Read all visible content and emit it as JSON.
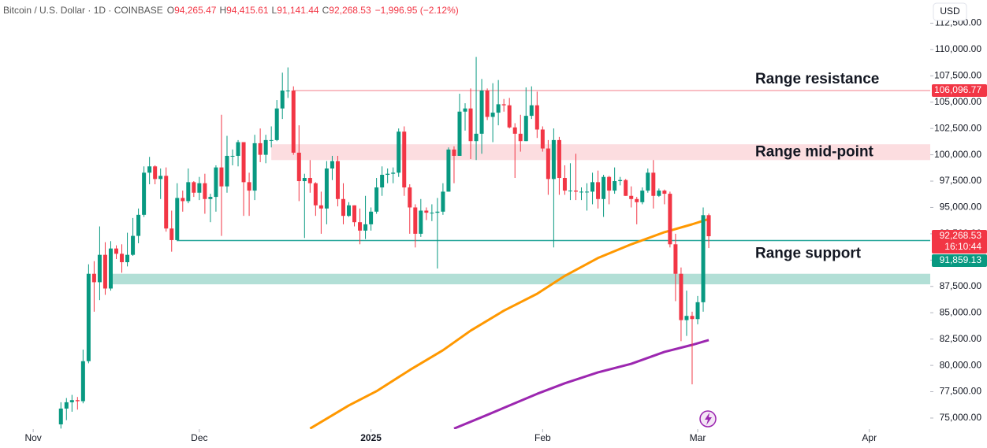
{
  "header": {
    "symbol": "Bitcoin / U.S. Dollar · 1D · COINBASE",
    "ohlc": [
      {
        "key": "O",
        "text": "94,265.47"
      },
      {
        "key": "H",
        "text": "94,415.61"
      },
      {
        "key": "L",
        "text": "91,141.44"
      },
      {
        "key": "C",
        "text": "92,268.53"
      }
    ],
    "change": "−1,996.95 (−2.12%)",
    "currency": "USD"
  },
  "chart_data": {
    "type": "candlestick",
    "up_color": "#089981",
    "down_color": "#f23645",
    "x": [
      5,
      6,
      7,
      8,
      9,
      10,
      11,
      12,
      13,
      14,
      15,
      16,
      17,
      18,
      19,
      20,
      21,
      22,
      23,
      24,
      25,
      26,
      27,
      28,
      29,
      30,
      31,
      32,
      33,
      34,
      35,
      36,
      37,
      38,
      39,
      40,
      41,
      42,
      43,
      44,
      45,
      46,
      47,
      48,
      49,
      50,
      51,
      52,
      53,
      54,
      55,
      56,
      57,
      58,
      59,
      60,
      61,
      62,
      63,
      64,
      65,
      66,
      67,
      68,
      69,
      70,
      71,
      72,
      73,
      74,
      75,
      76,
      77,
      78,
      79,
      80,
      81,
      82,
      83,
      84,
      85,
      86,
      87,
      88,
      89,
      90,
      91,
      92,
      93,
      94,
      95,
      96,
      97,
      98,
      99,
      100,
      101,
      102,
      103,
      104,
      105,
      106,
      107,
      108,
      109,
      110,
      111,
      112,
      113,
      114,
      115,
      116,
      117,
      118,
      119,
      120,
      121,
      122
    ],
    "open": [
      74400,
      75900,
      76500,
      76700,
      76600,
      80400,
      88700,
      87900,
      90500,
      87300,
      91100,
      90600,
      89800,
      90500,
      92300,
      94300,
      98300,
      98900,
      97700,
      98000,
      93000,
      91900,
      95900,
      95600,
      97400,
      96400,
      97300,
      95800,
      96000,
      98800,
      97000,
      99900,
      99900,
      101200,
      97400,
      96600,
      101100,
      100000,
      101400,
      101400,
      104400,
      106100,
      106100,
      100200,
      97500,
      97800,
      97300,
      95200,
      94900,
      98700,
      99400,
      95800,
      94200,
      95200,
      93600,
      92800,
      93400,
      94600,
      96900,
      98100,
      98200,
      98300,
      102200,
      96900,
      95000,
      92500,
      94700,
      94500,
      94500,
      94600,
      96500,
      100500,
      99900,
      104100,
      104400,
      101300,
      102000,
      106100,
      103600,
      104000,
      104800,
      104700,
      102600,
      102000,
      101300,
      103700,
      104700,
      102400,
      100600,
      97700,
      101400,
      97800,
      96600,
      96600,
      96500,
      96500,
      96500,
      97400,
      95800,
      97900,
      96600,
      97500,
      97600,
      96100,
      95800,
      95500,
      96600,
      98300,
      96100,
      96600,
      96300,
      91500,
      88700,
      84300,
      84700,
      84400,
      86000,
      94265.47
    ],
    "high": [
      76500,
      76900,
      77200,
      77000,
      81500,
      89600,
      89900,
      93200,
      91700,
      91800,
      91400,
      91500,
      92600,
      94000,
      94900,
      98900,
      99800,
      99000,
      98700,
      98800,
      94700,
      97300,
      96600,
      98700,
      97500,
      97900,
      98200,
      96300,
      99000,
      103800,
      101800,
      100500,
      101400,
      101200,
      98300,
      101900,
      102500,
      101900,
      102700,
      105200,
      107800,
      108300,
      106500,
      102800,
      98200,
      99500,
      97400,
      96500,
      99400,
      99900,
      99900,
      97300,
      95500,
      95200,
      94900,
      96100,
      95000,
      97800,
      98900,
      98700,
      98800,
      102500,
      102700,
      97200,
      95300,
      95800,
      95000,
      95300,
      95900,
      97300,
      100700,
      100800,
      105800,
      104900,
      106300,
      109300,
      107200,
      106300,
      106800,
      107100,
      105300,
      105400,
      103000,
      103800,
      106400,
      106500,
      106000,
      102700,
      101400,
      102500,
      101700,
      99000,
      99200,
      100100,
      96900,
      97300,
      98300,
      98500,
      98100,
      98000,
      98800,
      97900,
      97700,
      97000,
      96000,
      96900,
      98700,
      99500,
      96800,
      96700,
      96500,
      92500,
      89300,
      87100,
      85100,
      86600,
      95000,
      94415.61
    ],
    "low": [
      74000,
      74800,
      75600,
      75800,
      76400,
      80200,
      85100,
      86200,
      86700,
      87100,
      90100,
      88800,
      89400,
      90400,
      91600,
      94100,
      97200,
      97200,
      95800,
      92700,
      90800,
      91800,
      94600,
      95400,
      96000,
      95700,
      94400,
      93600,
      94600,
      92300,
      96400,
      99000,
      98900,
      94200,
      94200,
      95700,
      99300,
      99200,
      100700,
      101300,
      103400,
      105400,
      100000,
      95600,
      92100,
      96400,
      94200,
      92500,
      93400,
      97600,
      95100,
      93400,
      94100,
      93200,
      91500,
      92000,
      92800,
      94400,
      96100,
      97300,
      97300,
      97900,
      96100,
      92500,
      91200,
      92200,
      93800,
      93700,
      89200,
      94300,
      96500,
      97300,
      99900,
      102300,
      99600,
      99500,
      100100,
      103300,
      101200,
      102800,
      104100,
      102500,
      97800,
      100300,
      101300,
      103400,
      101600,
      100300,
      96200,
      91200,
      96200,
      96200,
      95700,
      95700,
      95700,
      94700,
      95300,
      94900,
      94100,
      95300,
      96300,
      97100,
      96100,
      95000,
      93400,
      95300,
      96400,
      94900,
      96000,
      95300,
      91200,
      86100,
      82300,
      82800,
      78200,
      83900,
      85100,
      91141.44
    ],
    "close": [
      75900,
      76500,
      76700,
      76600,
      80400,
      88700,
      87900,
      90500,
      87300,
      91100,
      90600,
      89800,
      90500,
      92300,
      94300,
      98300,
      98900,
      97700,
      98000,
      93000,
      91900,
      95900,
      95600,
      97400,
      96400,
      97300,
      95800,
      96000,
      98800,
      97000,
      99900,
      99900,
      101200,
      97400,
      96600,
      101100,
      100000,
      101400,
      101400,
      104400,
      106100,
      106100,
      100200,
      97500,
      97800,
      97300,
      95200,
      94900,
      98700,
      99400,
      95800,
      94200,
      95200,
      93600,
      92800,
      93400,
      94600,
      96900,
      98100,
      98200,
      98300,
      102200,
      96900,
      95000,
      92500,
      94700,
      94500,
      94500,
      94600,
      96500,
      100500,
      99900,
      104100,
      104400,
      101300,
      102000,
      106100,
      103600,
      104000,
      104800,
      104700,
      102600,
      102000,
      101300,
      103700,
      104700,
      102400,
      100600,
      97700,
      101400,
      97800,
      96600,
      96600,
      96500,
      96500,
      96500,
      97400,
      95800,
      97900,
      96600,
      97500,
      97600,
      96100,
      95800,
      95500,
      96600,
      98300,
      96100,
      96600,
      96300,
      91500,
      88700,
      84300,
      84700,
      84400,
      86000,
      94265.47,
      92268.53
    ],
    "series": [
      {
        "color": "#ff9800",
        "x": [
          50,
          57,
          62,
          68,
          74,
          79,
          85,
          91,
          96,
          102,
          108,
          114,
          119,
          122
        ],
        "values": [
          74000,
          76200,
          77550,
          79560,
          81440,
          83300,
          85200,
          86800,
          88500,
          90200,
          91500,
          92650,
          93400,
          93900
        ]
      },
      {
        "color": "#9c27b0",
        "x": [
          76,
          82,
          91,
          96,
          102,
          108,
          114,
          119,
          122
        ],
        "values": [
          74000,
          75300,
          77300,
          78300,
          79340,
          80150,
          81280,
          81950,
          82400
        ]
      }
    ],
    "levels": [
      {
        "kind": "zone",
        "range": [
          87700,
          88700
        ],
        "from": 14,
        "color": "#b2dfd6"
      },
      {
        "kind": "zone",
        "range": [
          99500,
          101000
        ],
        "from": 43,
        "color": "#fcdde0",
        "text": "Range mid-point",
        "text_color": "#f23645",
        "label_side": "center"
      },
      {
        "kind": "line",
        "value": 106096.77,
        "from": 47,
        "color": "#f7a8b0",
        "text": "Range resistance",
        "text_color": "#f23645",
        "label_side": "above"
      },
      {
        "kind": "line",
        "value": 91859.13,
        "from": 26,
        "color": "#26a69a",
        "text": "Range support",
        "text_color": "#089981",
        "label_side": "below"
      }
    ],
    "price_labels": [
      {
        "value": 106096.77,
        "label": "106,096.77",
        "color": "#f23645"
      },
      {
        "value": 92268.53,
        "label": "92,268.53",
        "sublabel": "16:10:44",
        "color": "#f23645"
      },
      {
        "value": 91859.13,
        "label": "91,859.13",
        "color": "#089981"
      }
    ],
    "xlim": [
      -6,
      162
    ],
    "ylim": [
      73950,
      114700
    ],
    "xticks": [
      {
        "value": 0,
        "label": "Nov"
      },
      {
        "value": 30,
        "label": "Dec"
      },
      {
        "value": 61,
        "label": "2025",
        "bold": true
      },
      {
        "value": 92,
        "label": "Feb"
      },
      {
        "value": 120,
        "label": "Mar"
      },
      {
        "value": 151,
        "label": "Apr"
      }
    ],
    "yticks": [
      {
        "value": 75000,
        "label": "75,000.00"
      },
      {
        "value": 77500,
        "label": "77,500.00"
      },
      {
        "value": 80000,
        "label": "80,000.00"
      },
      {
        "value": 82500,
        "label": "82,500.00"
      },
      {
        "value": 85000,
        "label": "85,000.00"
      },
      {
        "value": 87500,
        "label": "87,500.00"
      },
      {
        "value": 90000,
        "label": "90,000.00"
      },
      {
        "value": 92500,
        "label": "92,500.00"
      },
      {
        "value": 95000,
        "label": "95,000.00"
      },
      {
        "value": 97500,
        "label": "97,500.00"
      },
      {
        "value": 100000,
        "label": "100,000.00"
      },
      {
        "value": 102500,
        "label": "102,500.00"
      },
      {
        "value": 105000,
        "label": "105,000.00"
      },
      {
        "value": 107500,
        "label": "107,500.00"
      },
      {
        "value": 110000,
        "label": "110,000.00"
      },
      {
        "value": 112500,
        "label": "112,500.00"
      }
    ]
  }
}
